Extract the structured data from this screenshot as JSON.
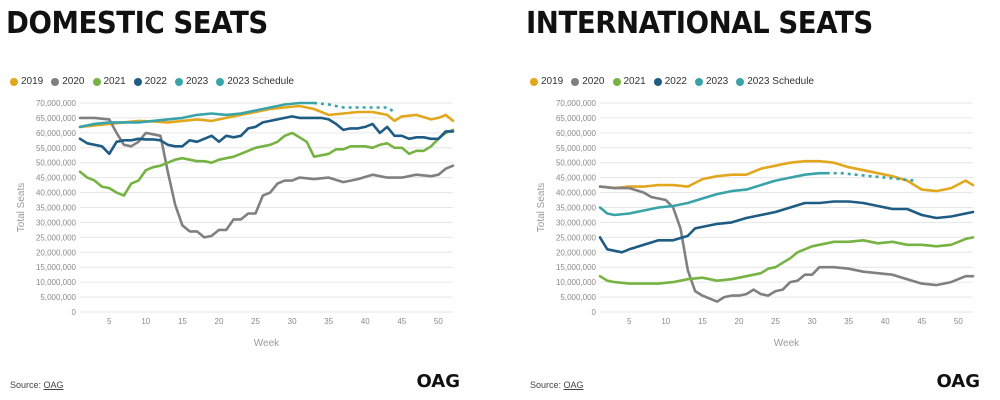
{
  "colors": {
    "2019": "#E3A71E",
    "2020": "#808080",
    "2021": "#76B343",
    "2022": "#1E5C84",
    "2023": "#3AA3A8",
    "2023 Schedule": "#3AA3A8"
  },
  "legend": [
    "2019",
    "2020",
    "2021",
    "2022",
    "2023",
    "2023 Schedule"
  ],
  "source_label": "Source:",
  "source_link": "OAG",
  "logo": "OAG",
  "chart_data": [
    {
      "type": "line",
      "title": "DOMESTIC SEATS",
      "xlabel": "Week",
      "ylabel": "Total Seats",
      "xlim": [
        1,
        52
      ],
      "ylim": [
        0,
        70000000
      ],
      "x_ticks": [
        5,
        10,
        15,
        20,
        25,
        30,
        35,
        40,
        45,
        50
      ],
      "y_ticks": [
        0,
        5000000,
        10000000,
        15000000,
        20000000,
        25000000,
        30000000,
        35000000,
        40000000,
        45000000,
        50000000,
        55000000,
        60000000,
        65000000,
        70000000
      ],
      "y_tick_labels": [
        "0",
        "5,000,000",
        "10,000,000",
        "15,000,000",
        "20,000,000",
        "25,000,000",
        "30,000,000",
        "35,000,000",
        "40,000,000",
        "45,000,000",
        "50,000,000",
        "55,000,000",
        "60,000,000",
        "65,000,000",
        "70,000,000"
      ],
      "series": [
        {
          "name": "2019",
          "x": [
            1,
            3,
            5,
            7,
            9,
            11,
            13,
            15,
            17,
            19,
            21,
            23,
            25,
            27,
            29,
            31,
            33,
            35,
            37,
            39,
            41,
            43,
            44,
            45,
            47,
            49,
            50,
            51,
            52
          ],
          "y": [
            62000000,
            62500000,
            63000000,
            63500000,
            64000000,
            63800000,
            63500000,
            64000000,
            64500000,
            64000000,
            65000000,
            66000000,
            67000000,
            68000000,
            68500000,
            69000000,
            68000000,
            66000000,
            66500000,
            67000000,
            67000000,
            66000000,
            64000000,
            65500000,
            66000000,
            64500000,
            65000000,
            66000000,
            64000000
          ]
        },
        {
          "name": "2020",
          "x": [
            1,
            3,
            5,
            6,
            7,
            8,
            9,
            10,
            11,
            12,
            13,
            14,
            15,
            16,
            17,
            18,
            19,
            20,
            21,
            22,
            23,
            24,
            25,
            26,
            27,
            28,
            29,
            30,
            31,
            33,
            35,
            37,
            39,
            41,
            43,
            45,
            47,
            49,
            50,
            51,
            52
          ],
          "y": [
            65000000,
            65000000,
            64500000,
            60000000,
            56000000,
            55500000,
            57000000,
            60000000,
            59500000,
            59000000,
            47000000,
            36000000,
            29000000,
            27000000,
            27000000,
            25000000,
            25500000,
            27500000,
            27500000,
            31000000,
            31000000,
            33000000,
            33000000,
            39000000,
            40000000,
            43000000,
            44000000,
            44000000,
            45000000,
            44500000,
            45000000,
            43500000,
            44500000,
            46000000,
            45000000,
            45000000,
            46000000,
            45500000,
            46000000,
            48000000,
            49000000
          ]
        },
        {
          "name": "2021",
          "x": [
            1,
            2,
            3,
            4,
            5,
            6,
            7,
            8,
            9,
            10,
            11,
            12,
            13,
            14,
            15,
            16,
            17,
            18,
            19,
            20,
            21,
            22,
            23,
            24,
            25,
            26,
            27,
            28,
            29,
            30,
            31,
            32,
            33,
            34,
            35,
            36,
            37,
            38,
            39,
            40,
            41,
            42,
            43,
            44,
            45,
            46,
            47,
            48,
            49,
            50,
            51,
            52
          ],
          "y": [
            47000000,
            45000000,
            44000000,
            42000000,
            41500000,
            40000000,
            39000000,
            43000000,
            44000000,
            47500000,
            48500000,
            49000000,
            50000000,
            51000000,
            51500000,
            51000000,
            50500000,
            50500000,
            50000000,
            51000000,
            51500000,
            52000000,
            53000000,
            54000000,
            55000000,
            55500000,
            56000000,
            57000000,
            59000000,
            60000000,
            58500000,
            57000000,
            52000000,
            52500000,
            53000000,
            54500000,
            54500000,
            55500000,
            55500000,
            55500000,
            55000000,
            56000000,
            56500000,
            55000000,
            55000000,
            53000000,
            54000000,
            54000000,
            55500000,
            58000000,
            60000000,
            61000000
          ]
        },
        {
          "name": "2022",
          "x": [
            1,
            2,
            3,
            4,
            5,
            6,
            7,
            8,
            9,
            10,
            11,
            12,
            13,
            14,
            15,
            16,
            17,
            18,
            19,
            20,
            21,
            22,
            23,
            24,
            25,
            26,
            27,
            28,
            29,
            30,
            31,
            32,
            33,
            34,
            35,
            36,
            37,
            38,
            39,
            40,
            41,
            42,
            43,
            44,
            45,
            46,
            47,
            48,
            49,
            50,
            51,
            52
          ],
          "y": [
            58000000,
            56500000,
            56000000,
            55500000,
            53000000,
            57000000,
            57500000,
            57500000,
            58000000,
            57800000,
            57800000,
            57500000,
            56000000,
            55500000,
            55500000,
            57500000,
            57000000,
            58000000,
            59000000,
            57000000,
            59000000,
            58500000,
            59000000,
            61500000,
            62000000,
            63500000,
            64000000,
            64500000,
            65000000,
            65500000,
            65000000,
            65000000,
            65000000,
            65000000,
            64500000,
            63000000,
            61000000,
            61500000,
            61500000,
            62000000,
            63000000,
            60000000,
            62000000,
            59000000,
            59000000,
            58000000,
            58500000,
            58500000,
            58000000,
            58000000,
            60500000,
            60500000
          ]
        },
        {
          "name": "2023",
          "x": [
            1,
            3,
            5,
            7,
            9,
            11,
            13,
            15,
            17,
            19,
            21,
            23,
            25,
            27,
            29,
            31,
            33
          ],
          "y": [
            62000000,
            63000000,
            63500000,
            63500000,
            63500000,
            64000000,
            64500000,
            65000000,
            66000000,
            66500000,
            66000000,
            66500000,
            67500000,
            68500000,
            69500000,
            70000000,
            70000000
          ]
        },
        {
          "name": "2023 Schedule",
          "dashed": true,
          "x": [
            33,
            35,
            37,
            39,
            41,
            43,
            44
          ],
          "y": [
            70000000,
            69500000,
            68500000,
            68500000,
            68500000,
            68500000,
            67000000
          ]
        }
      ]
    },
    {
      "type": "line",
      "title": "INTERNATIONAL SEATS",
      "xlabel": "Week",
      "ylabel": "Total Seats",
      "xlim": [
        1,
        52
      ],
      "ylim": [
        0,
        70000000
      ],
      "x_ticks": [
        5,
        10,
        15,
        20,
        25,
        30,
        35,
        40,
        45,
        50
      ],
      "y_ticks": [
        0,
        5000000,
        10000000,
        15000000,
        20000000,
        25000000,
        30000000,
        35000000,
        40000000,
        45000000,
        50000000,
        55000000,
        60000000,
        65000000,
        70000000
      ],
      "y_tick_labels": [
        "0",
        "5,000,000",
        "10,000,000",
        "15,000,000",
        "20,000,000",
        "25,000,000",
        "30,000,000",
        "35,000,000",
        "40,000,000",
        "45,000,000",
        "50,000,000",
        "55,000,000",
        "60,000,000",
        "65,000,000",
        "70,000,000"
      ],
      "series": [
        {
          "name": "2019",
          "x": [
            1,
            3,
            5,
            7,
            9,
            11,
            13,
            15,
            17,
            19,
            21,
            23,
            25,
            27,
            29,
            31,
            33,
            35,
            37,
            39,
            41,
            43,
            45,
            47,
            49,
            51,
            52
          ],
          "y": [
            42000000,
            41500000,
            42000000,
            42000000,
            42500000,
            42500000,
            42000000,
            44500000,
            45500000,
            46000000,
            46000000,
            48000000,
            49000000,
            50000000,
            50500000,
            50500000,
            50000000,
            48500000,
            47500000,
            46500000,
            45500000,
            44000000,
            41000000,
            40500000,
            41500000,
            44000000,
            42500000
          ]
        },
        {
          "name": "2020",
          "x": [
            1,
            3,
            5,
            7,
            8,
            9,
            10,
            11,
            12,
            13,
            14,
            15,
            16,
            17,
            18,
            19,
            20,
            21,
            22,
            23,
            24,
            25,
            26,
            27,
            28,
            29,
            30,
            31,
            33,
            35,
            37,
            39,
            41,
            43,
            45,
            47,
            49,
            51,
            52
          ],
          "y": [
            42000000,
            41500000,
            41500000,
            40000000,
            38500000,
            38000000,
            37500000,
            35000000,
            28000000,
            14000000,
            7000000,
            5500000,
            4500000,
            3500000,
            5000000,
            5500000,
            5500000,
            6000000,
            7500000,
            6000000,
            5500000,
            7000000,
            7500000,
            10000000,
            10500000,
            12500000,
            12500000,
            15000000,
            15000000,
            14500000,
            13500000,
            13000000,
            12500000,
            11000000,
            9500000,
            9000000,
            10000000,
            12000000,
            12000000
          ]
        },
        {
          "name": "2021",
          "x": [
            1,
            2,
            3,
            5,
            7,
            9,
            11,
            13,
            15,
            17,
            19,
            21,
            23,
            24,
            25,
            26,
            27,
            28,
            29,
            30,
            31,
            33,
            35,
            37,
            39,
            41,
            43,
            45,
            47,
            49,
            51,
            52
          ],
          "y": [
            12000000,
            10500000,
            10000000,
            9500000,
            9500000,
            9500000,
            10000000,
            11000000,
            11500000,
            10500000,
            11000000,
            12000000,
            13000000,
            14500000,
            15000000,
            16500000,
            18000000,
            20000000,
            21000000,
            22000000,
            22500000,
            23500000,
            23500000,
            24000000,
            23000000,
            23500000,
            22500000,
            22500000,
            22000000,
            22500000,
            24500000,
            25000000
          ]
        },
        {
          "name": "2022",
          "x": [
            1,
            2,
            3,
            4,
            5,
            7,
            9,
            11,
            13,
            14,
            15,
            17,
            19,
            21,
            23,
            25,
            27,
            29,
            31,
            33,
            35,
            37,
            39,
            41,
            43,
            45,
            47,
            49,
            51,
            52
          ],
          "y": [
            25000000,
            21000000,
            20500000,
            20000000,
            21000000,
            22500000,
            24000000,
            24000000,
            25500000,
            28000000,
            28500000,
            29500000,
            30000000,
            31500000,
            32500000,
            33500000,
            35000000,
            36500000,
            36500000,
            37000000,
            37000000,
            36500000,
            35500000,
            34500000,
            34500000,
            32500000,
            31500000,
            32000000,
            33000000,
            33500000
          ]
        },
        {
          "name": "2023",
          "x": [
            1,
            2,
            3,
            5,
            7,
            9,
            11,
            13,
            15,
            17,
            19,
            21,
            23,
            25,
            27,
            29,
            31,
            32
          ],
          "y": [
            35000000,
            33000000,
            32500000,
            33000000,
            34000000,
            35000000,
            35500000,
            36500000,
            38000000,
            39500000,
            40500000,
            41000000,
            42500000,
            44000000,
            45000000,
            46000000,
            46500000,
            46500000
          ]
        },
        {
          "name": "2023 Schedule",
          "dashed": true,
          "x": [
            32,
            34,
            36,
            38,
            40,
            42,
            44
          ],
          "y": [
            46500000,
            46500000,
            46000000,
            45500000,
            45000000,
            44500000,
            44000000
          ]
        }
      ]
    }
  ]
}
